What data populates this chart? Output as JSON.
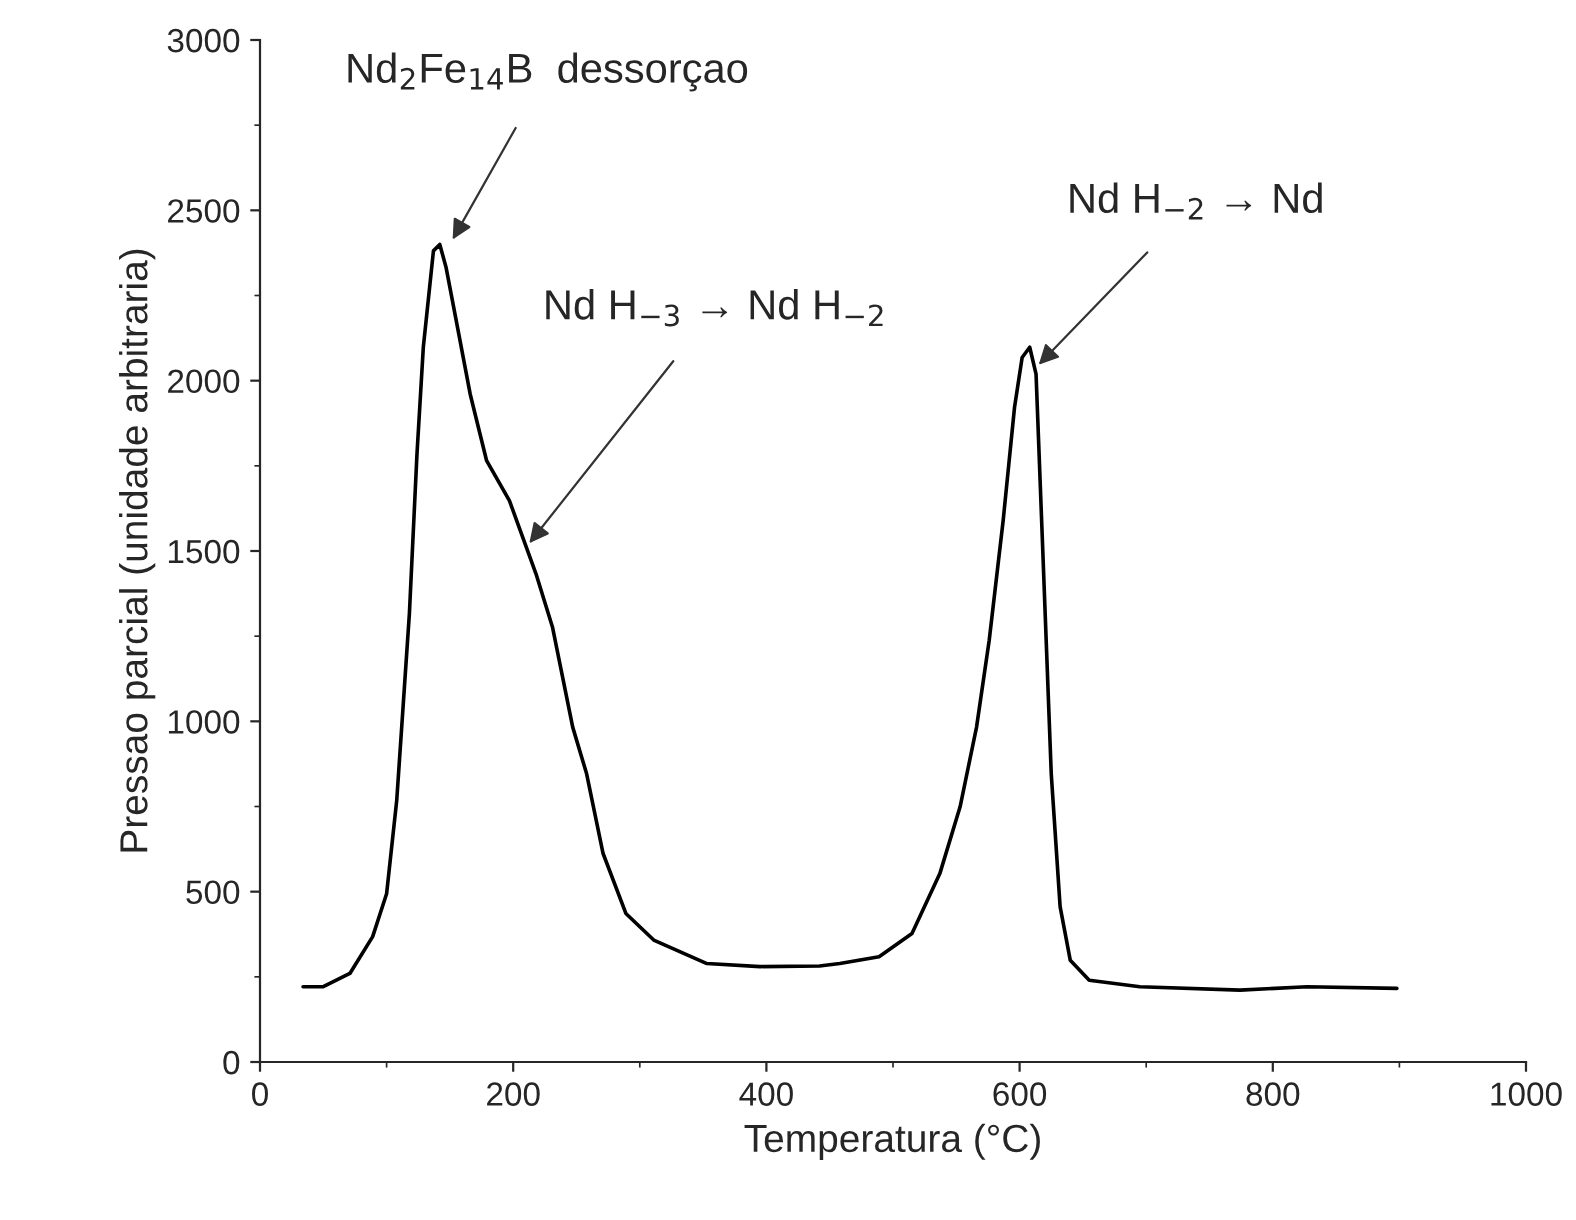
{
  "chart_data": {
    "type": "line",
    "xlabel": "Temperatura (°C)",
    "ylabel": "Pressao parcial (unidade arbitraria)",
    "xlim": [
      0,
      1000
    ],
    "xticks": [
      0,
      200,
      400,
      600,
      800,
      1000
    ],
    "ylim": [
      0,
      3000
    ],
    "yticks": [
      0,
      500,
      1000,
      1500,
      2000,
      2500,
      3000
    ],
    "grid": false,
    "legend": false,
    "marker": "none",
    "line_style": "solid",
    "series": [
      {
        "color": "#000000",
        "x": [
          34,
          50,
          71,
          89,
          100,
          108,
          113,
          118,
          124,
          129,
          137,
          142,
          147,
          155,
          166,
          179,
          197,
          218,
          231,
          247,
          258,
          271,
          289,
          311,
          353,
          395,
          442,
          458,
          489,
          515,
          537,
          553,
          566,
          576,
          587,
          596,
          602,
          608,
          613,
          618,
          625,
          632,
          640,
          655,
          695,
          774,
          827,
          898
        ],
        "values": [
          221,
          221,
          260,
          368,
          494,
          768,
          1042,
          1316,
          1785,
          2098,
          2381,
          2400,
          2332,
          2176,
          1961,
          1765,
          1648,
          1433,
          1277,
          983,
          846,
          612,
          436,
          358,
          289,
          280,
          282,
          289,
          309,
          377,
          553,
          749,
          983,
          1238,
          1589,
          1922,
          2068,
          2098,
          2019,
          1531,
          846,
          456,
          299,
          240,
          221,
          211,
          221,
          216
        ]
      }
    ],
    "annotations": [
      {
        "text": "Nd$_{2}$Fe$_{14}$B  dessorçao",
        "x": 150,
        "y": 2400
      },
      {
        "text": "Nd H$_{−3}$ → Nd H$_{−2}$",
        "x": 210,
        "y": 1510
      },
      {
        "text": "Nd H$_{−2}$ → Nd",
        "x": 612,
        "y": 2035
      }
    ]
  }
}
